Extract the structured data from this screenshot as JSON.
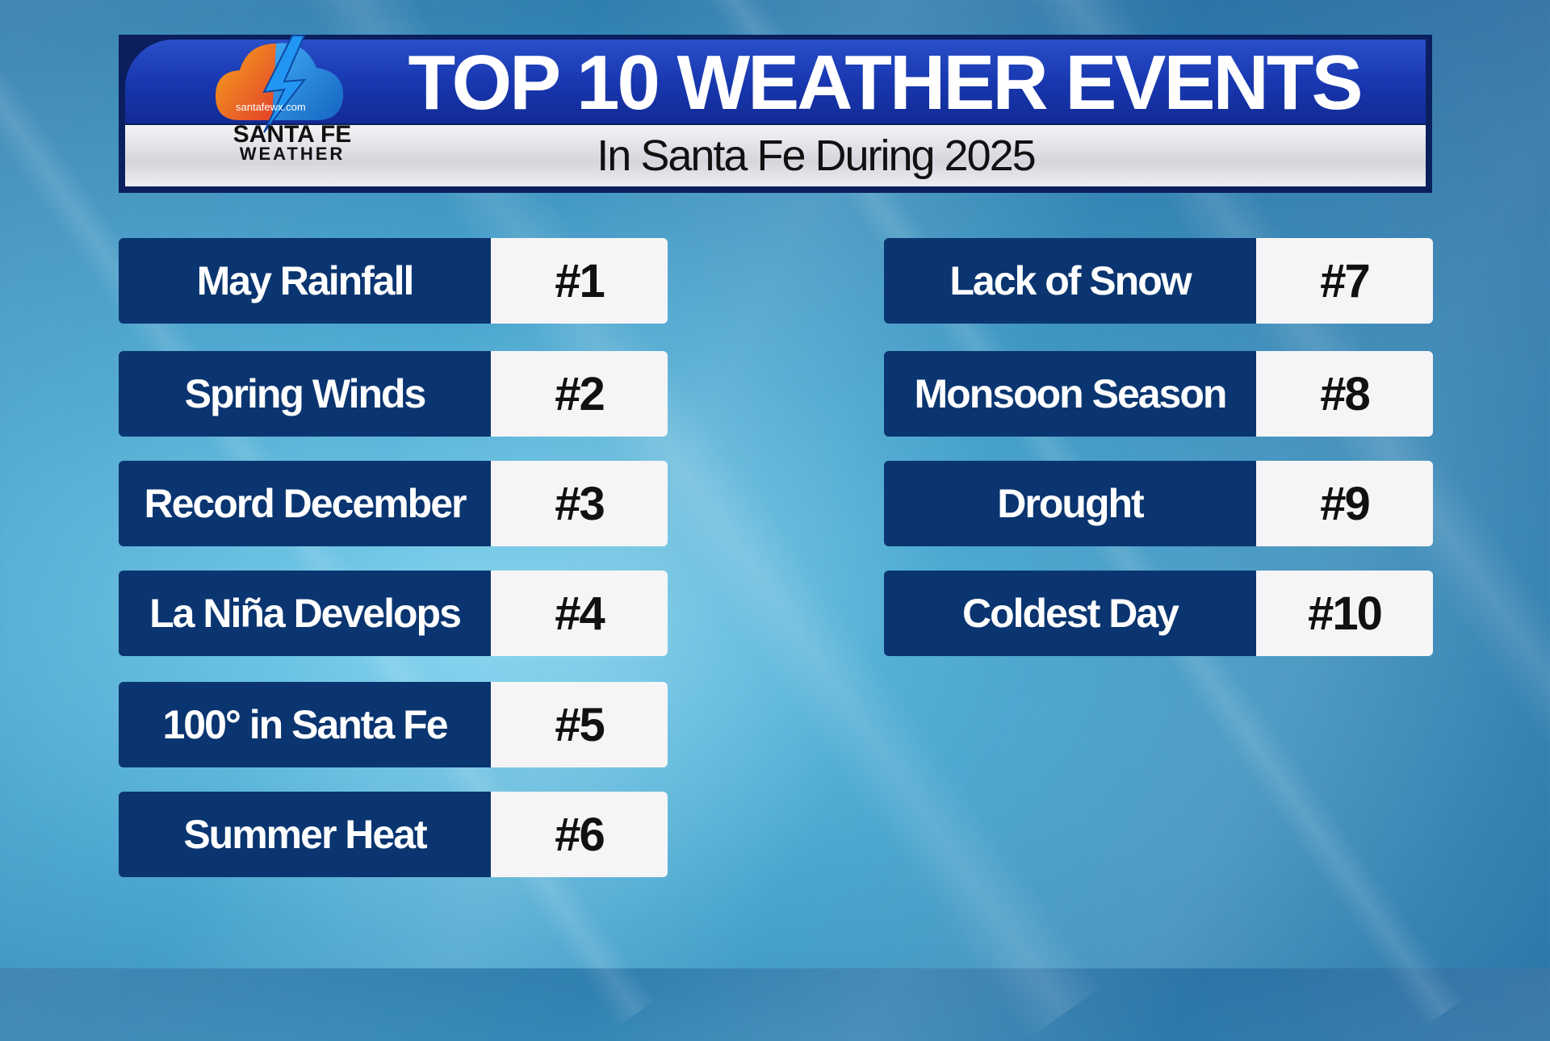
{
  "header": {
    "title": "TOP 10 WEATHER EVENTS",
    "subtitle": "In Santa Fe During 2025"
  },
  "logo": {
    "url": "santafewx.com",
    "name_line1": "SANTA FE",
    "name_line2": "WEATHER"
  },
  "colors": {
    "label_bg": "#0a3570",
    "header_blue": "#1838b0",
    "number_bg": "#f5f5f7"
  },
  "events": [
    {
      "label": "May Rainfall",
      "rank": "#1"
    },
    {
      "label": "Spring Winds",
      "rank": "#2"
    },
    {
      "label": "Record December",
      "rank": "#3"
    },
    {
      "label": "La Niña Develops",
      "rank": "#4"
    },
    {
      "label": "100° in Santa Fe",
      "rank": "#5"
    },
    {
      "label": "Summer Heat",
      "rank": "#6"
    },
    {
      "label": "Lack of Snow",
      "rank": "#7"
    },
    {
      "label": "Monsoon Season",
      "rank": "#8"
    },
    {
      "label": "Drought",
      "rank": "#9"
    },
    {
      "label": "Coldest Day",
      "rank": "#10"
    }
  ]
}
